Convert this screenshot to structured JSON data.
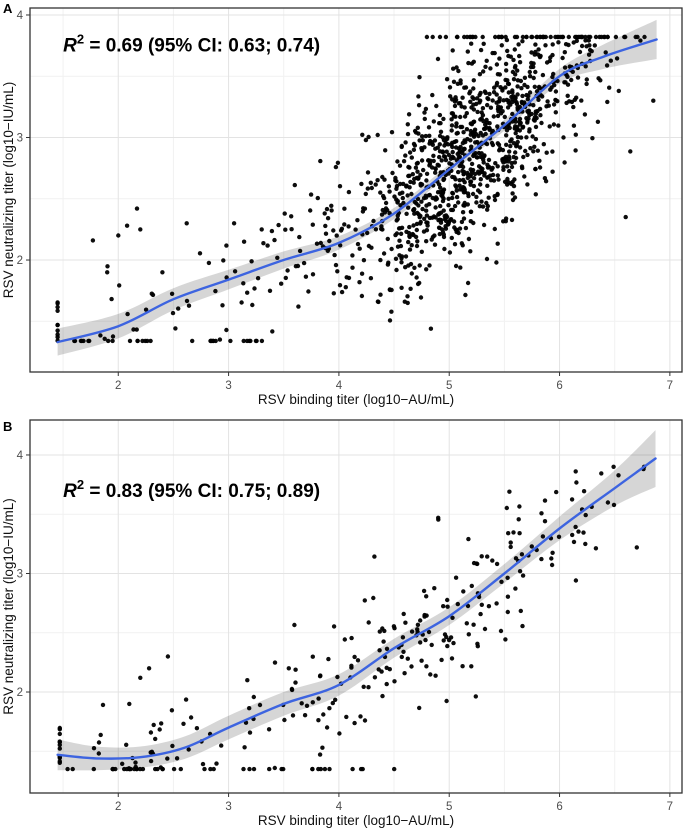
{
  "style": {
    "background": "#ffffff",
    "point_color": "#000000",
    "point_radius": 2.2,
    "point_opacity": 0.95,
    "line_color": "#3d64e0",
    "line_width": 2.4,
    "band_color": "rgba(0,0,0,0.16)",
    "grid_major": "#e3e3e3",
    "grid_minor": "#f1f1f1",
    "panel_border": "#333333",
    "tick_color": "#333333"
  },
  "chart_data": [
    {
      "type": "scatter",
      "panel_label": "A",
      "annotation": {
        "r": "R",
        "sup": "2",
        "text": " = 0.69 (95% CI: 0.63; 0.74)",
        "x": 1.5,
        "y": 3.7
      },
      "xlabel": "RSV binding titer (log10−AU/mL)",
      "ylabel": "RSV neutralizing titer (log10−IU/mL)",
      "xlim": [
        1.2,
        7.11
      ],
      "ylim": [
        1.086,
        4.057
      ],
      "x_ticks": [
        2,
        3,
        4,
        5,
        6,
        7
      ],
      "x_minor": [
        1.5,
        2.5,
        3.5,
        4.5,
        5.5,
        6.5
      ],
      "y_ticks": [
        2,
        3,
        4
      ],
      "y_minor": [
        1.5,
        2.5,
        3.5
      ],
      "grid": true,
      "legend": "none",
      "trend": [
        [
          1.45,
          1.33,
          0.11
        ],
        [
          2.0,
          1.46,
          0.1
        ],
        [
          2.5,
          1.68,
          0.09
        ],
        [
          3.0,
          1.84,
          0.08
        ],
        [
          3.5,
          2.0,
          0.07
        ],
        [
          4.0,
          2.14,
          0.055
        ],
        [
          4.5,
          2.38,
          0.045
        ],
        [
          5.0,
          2.74,
          0.04
        ],
        [
          5.5,
          3.1,
          0.045
        ],
        [
          6.0,
          3.5,
          0.06
        ],
        [
          6.4,
          3.66,
          0.1
        ],
        [
          6.88,
          3.8,
          0.16
        ]
      ],
      "scatter": {
        "seed": 42,
        "y_clamp": {
          "min": 1.34,
          "max": 3.82
        },
        "clusters": [
          {
            "n": 1050,
            "x_mean": 5.2,
            "x_sd": 0.55,
            "x_min": 3.8,
            "x_max": 6.92,
            "y_sd": 0.36
          },
          {
            "n": 75,
            "x_mean": 3.7,
            "x_sd": 0.45,
            "x_min": 2.7,
            "x_max": 4.5,
            "y_sd": 0.3
          },
          {
            "n": 25,
            "x_mean": 2.3,
            "x_sd": 0.35,
            "x_min": 1.6,
            "x_max": 3.1,
            "y_sd": 0.18
          }
        ],
        "floor_row": {
          "n": 26,
          "x_min": 1.5,
          "x_max": 3.45,
          "y": 1.34
        },
        "ceiling_row": {
          "n": 32,
          "x_min": 4.75,
          "x_max": 6.85,
          "y": 3.82
        },
        "left_stack": {
          "n": 10,
          "x": 1.45,
          "y_min": 1.3,
          "y_max": 1.66
        },
        "extra_points": [
          [
            1.77,
            2.16
          ],
          [
            2.0,
            2.2
          ],
          [
            2.08,
            2.28
          ],
          [
            2.17,
            2.42
          ],
          [
            2.2,
            2.25
          ],
          [
            2.62,
            2.3
          ],
          [
            1.9,
            1.9
          ],
          [
            2.4,
            1.9
          ],
          [
            3.05,
            2.3
          ],
          [
            3.3,
            2.25
          ],
          [
            6.85,
            3.3
          ],
          [
            6.6,
            2.35
          ]
        ]
      }
    },
    {
      "type": "scatter",
      "panel_label": "B",
      "annotation": {
        "r": "R",
        "sup": "2",
        "text": " = 0.83 (95% CI: 0.75; 0.89)",
        "x": 1.5,
        "y": 3.645
      },
      "xlabel": "RSV binding titer (log10−AU/mL)",
      "ylabel": "RSV neutralizing titer (log10−IU/mL)",
      "xlim": [
        1.2,
        7.11
      ],
      "ylim": [
        1.148,
        4.295
      ],
      "x_ticks": [
        2,
        3,
        4,
        5,
        6,
        7
      ],
      "x_minor": [
        1.5,
        2.5,
        3.5,
        4.5,
        5.5,
        6.5
      ],
      "y_ticks": [
        2,
        3,
        4
      ],
      "y_minor": [
        1.5,
        2.5,
        3.5
      ],
      "grid": true,
      "legend": "none",
      "trend": [
        [
          1.45,
          1.47,
          0.13
        ],
        [
          1.8,
          1.44,
          0.1
        ],
        [
          2.2,
          1.45,
          0.09
        ],
        [
          2.6,
          1.53,
          0.095
        ],
        [
          3.0,
          1.7,
          0.1
        ],
        [
          3.5,
          1.9,
          0.1
        ],
        [
          4.0,
          2.06,
          0.09
        ],
        [
          4.5,
          2.37,
          0.08
        ],
        [
          5.0,
          2.64,
          0.075
        ],
        [
          5.5,
          3.0,
          0.08
        ],
        [
          6.0,
          3.38,
          0.1
        ],
        [
          6.5,
          3.72,
          0.15
        ],
        [
          6.87,
          3.97,
          0.24
        ]
      ],
      "scatter": {
        "seed": 7,
        "y_clamp": {
          "min": 1.35,
          "max": 3.9
        },
        "clusters": [
          {
            "n": 175,
            "x_mean": 5.1,
            "x_sd": 0.9,
            "x_min": 3.3,
            "x_max": 6.9,
            "y_sd": 0.27
          },
          {
            "n": 30,
            "x_mean": 3.9,
            "x_sd": 0.5,
            "x_min": 3.0,
            "x_max": 4.8,
            "y_sd": 0.25
          },
          {
            "n": 50,
            "x_mean": 2.4,
            "x_sd": 0.4,
            "x_min": 1.7,
            "x_max": 3.3,
            "y_sd": 0.2
          }
        ],
        "floor_row": {
          "n": 30,
          "x_min": 1.5,
          "x_max": 4.6,
          "y": 1.35
        },
        "left_stack": {
          "n": 12,
          "x": 1.47,
          "y_min": 1.33,
          "y_max": 1.73
        },
        "extra_points": [
          [
            2.2,
            2.12
          ],
          [
            2.28,
            2.2
          ],
          [
            3.17,
            2.1
          ],
          [
            3.85,
            1.53
          ],
          [
            6.7,
            3.22
          ],
          [
            2.1,
            1.9
          ],
          [
            4.9,
            3.47
          ],
          [
            2.45,
            2.3
          ]
        ]
      }
    }
  ]
}
